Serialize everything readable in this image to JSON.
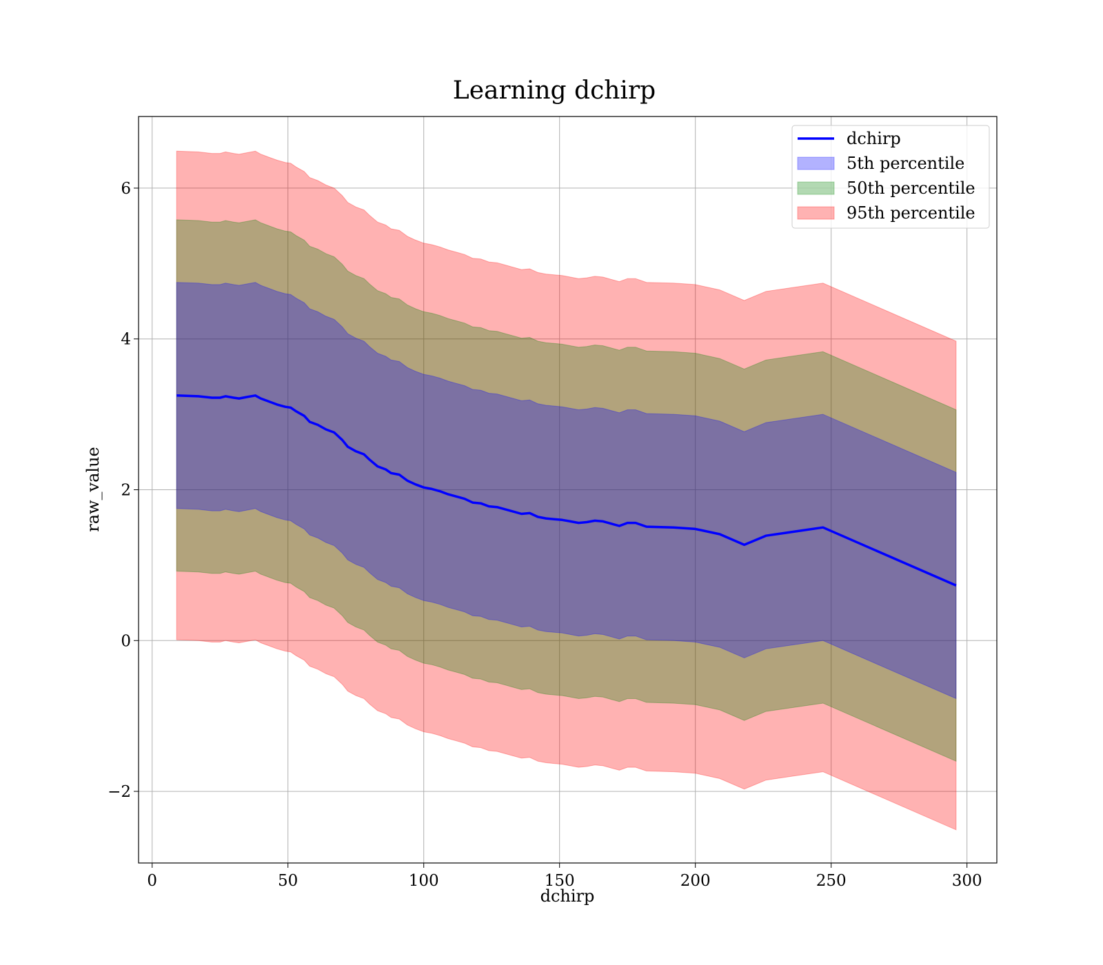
{
  "chart_data": {
    "type": "line",
    "title": "Learning dchirp",
    "xlabel": "dchirp",
    "ylabel": "raw_value",
    "xlim": [
      -5,
      311
    ],
    "ylim": [
      -2.95,
      6.95
    ],
    "xticks": [
      0,
      50,
      100,
      150,
      200,
      250,
      300
    ],
    "xtick_labels": [
      "0",
      "50",
      "100",
      "150",
      "200",
      "250",
      "300"
    ],
    "yticks": [
      -2,
      0,
      2,
      4,
      6
    ],
    "ytick_labels": [
      "−2",
      "0",
      "2",
      "4",
      "6"
    ],
    "grid": true,
    "legend_position": "top-right",
    "x": [
      9,
      17,
      22,
      25,
      27,
      30,
      32,
      35,
      38,
      40,
      43,
      46,
      49,
      51,
      53,
      56,
      58,
      61,
      64,
      67,
      70,
      72,
      75,
      78,
      80,
      83,
      86,
      88,
      91,
      94,
      97,
      100,
      103,
      106,
      109,
      112,
      115,
      118,
      121,
      124,
      127,
      130,
      133,
      136,
      139,
      142,
      145,
      148,
      151,
      154,
      157,
      160,
      163,
      166,
      169,
      172,
      175,
      178,
      182,
      192,
      200,
      209,
      218,
      226,
      247,
      296
    ],
    "series": [
      {
        "name": "dchirp",
        "kind": "line",
        "color": "#0000ff",
        "values": [
          3.25,
          3.24,
          3.22,
          3.22,
          3.24,
          3.22,
          3.21,
          3.23,
          3.25,
          3.21,
          3.17,
          3.13,
          3.1,
          3.09,
          3.04,
          2.98,
          2.9,
          2.86,
          2.8,
          2.76,
          2.66,
          2.57,
          2.51,
          2.47,
          2.4,
          2.31,
          2.27,
          2.22,
          2.2,
          2.12,
          2.07,
          2.03,
          2.01,
          1.98,
          1.94,
          1.91,
          1.88,
          1.83,
          1.82,
          1.78,
          1.77,
          1.74,
          1.71,
          1.68,
          1.69,
          1.64,
          1.62,
          1.61,
          1.6,
          1.58,
          1.56,
          1.57,
          1.59,
          1.58,
          1.55,
          1.52,
          1.56,
          1.56,
          1.51,
          1.5,
          1.48,
          1.41,
          1.27,
          1.39,
          1.5,
          0.73
        ]
      },
      {
        "name": "5th percentile",
        "kind": "band",
        "color": "#0000ff",
        "half_width": 1.5
      },
      {
        "name": "50th percentile",
        "kind": "band",
        "color": "#008000",
        "half_width": 2.33
      },
      {
        "name": "95th percentile",
        "kind": "band",
        "color": "#ff0000",
        "half_width": 3.24
      }
    ]
  }
}
